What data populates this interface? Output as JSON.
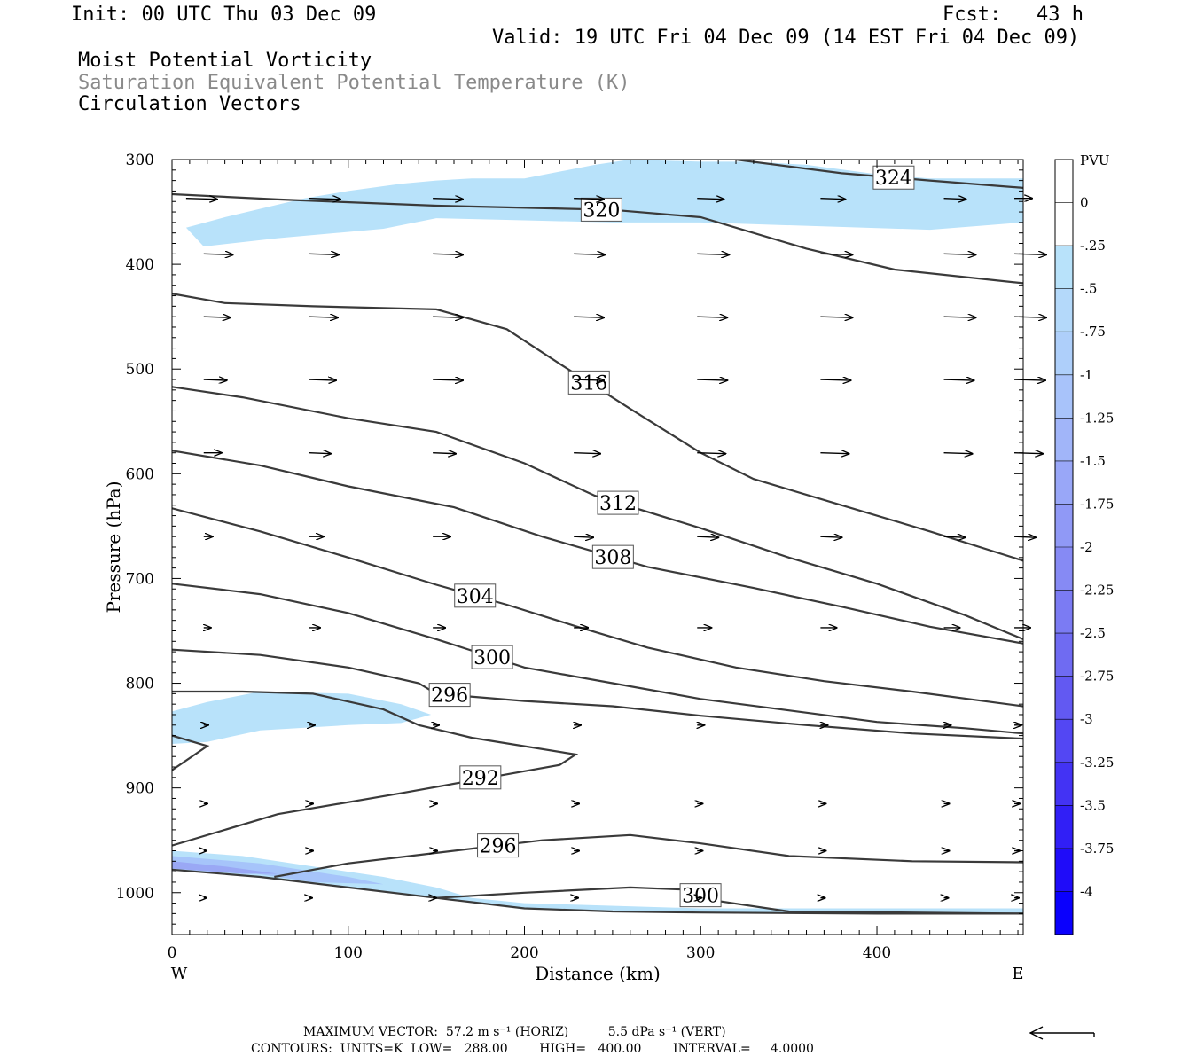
{
  "header": {
    "init": "Init: 00 UTC Thu 03 Dec 09",
    "fcst": "Fcst:   43 h",
    "valid": "Valid: 19 UTC Fri 04 Dec 09 (14 EST Fri 04 Dec 09)",
    "field1": "Moist Potential Vorticity",
    "field2": "Saturation Equivalent Potential Temperature (K)",
    "field3": "Circulation Vectors"
  },
  "footer": {
    "line1": "MAXIMUM VECTOR:  57.2 m s⁻¹ (HORIZ)          5.5 dPa s⁻¹ (VERT)",
    "line2": "CONTOURS:  UNITS=K  LOW=   288.00        HIGH=   400.00        INTERVAL=     4.0000"
  },
  "colors": {
    "pv_shade_light": "#b8e2fa",
    "pv_shade_mid": "#a6c4fa",
    "pv_shade_dark": "#9aa8f5",
    "contour": "#3a3a3a"
  },
  "chart_data": {
    "type": "cross-section",
    "xlabel": "Distance (km)",
    "ylabel": "Pressure (hPa)",
    "xlim": [
      0,
      483
    ],
    "ylim": [
      1040,
      300
    ],
    "x_ticks": [
      "0",
      "100",
      "200",
      "300",
      "400"
    ],
    "y_ticks": [
      "300",
      "400",
      "500",
      "600",
      "700",
      "800",
      "900",
      "1000"
    ],
    "left_end": "W",
    "right_end": "E",
    "colorbar": {
      "title": "PVU",
      "labels": [
        "0",
        "-.25",
        "-.5",
        "-.75",
        "-1",
        "-1.25",
        "-1.5",
        "-1.75",
        "-2",
        "-2.25",
        "-2.5",
        "-2.75",
        "-3",
        "-3.25",
        "-3.5",
        "-3.75",
        "-4"
      ],
      "bin_colors": [
        "#ffffff",
        "#ffffff",
        "#b8e2fa",
        "#b4d9fa",
        "#aecffa",
        "#a8c3fa",
        "#a1b5f9",
        "#99a7f8",
        "#9099f6",
        "#868af4",
        "#7b7bf3",
        "#6f6bf2",
        "#6259f2",
        "#5347f3",
        "#4333f4",
        "#311ff6",
        "#1f0cf9",
        "#0a00fd"
      ]
    },
    "contours": [
      {
        "label": "320",
        "points": [
          [
            0,
            333
          ],
          [
            60,
            338
          ],
          [
            150,
            344
          ],
          [
            250,
            348
          ],
          [
            300,
            355
          ],
          [
            360,
            385
          ],
          [
            410,
            405
          ],
          [
            483,
            418
          ]
        ]
      },
      {
        "label": "324",
        "points": [
          [
            320,
            300
          ],
          [
            380,
            313
          ],
          [
            430,
            320
          ],
          [
            483,
            327
          ]
        ]
      },
      {
        "label": "316",
        "points": [
          [
            0,
            428
          ],
          [
            30,
            437
          ],
          [
            80,
            440
          ],
          [
            150,
            443
          ],
          [
            190,
            462
          ],
          [
            220,
            495
          ],
          [
            260,
            538
          ],
          [
            300,
            580
          ],
          [
            330,
            605
          ],
          [
            380,
            630
          ],
          [
            430,
            655
          ],
          [
            483,
            683
          ]
        ]
      },
      {
        "label": "312",
        "points": [
          [
            0,
            517
          ],
          [
            40,
            527
          ],
          [
            100,
            547
          ],
          [
            150,
            560
          ],
          [
            200,
            590
          ],
          [
            240,
            621
          ],
          [
            300,
            652
          ],
          [
            350,
            680
          ],
          [
            400,
            705
          ],
          [
            450,
            735
          ],
          [
            483,
            758
          ]
        ]
      },
      {
        "label": "308",
        "points": [
          [
            0,
            578
          ],
          [
            50,
            592
          ],
          [
            100,
            612
          ],
          [
            160,
            632
          ],
          [
            210,
            660
          ],
          [
            270,
            689
          ],
          [
            330,
            709
          ],
          [
            380,
            727
          ],
          [
            430,
            746
          ],
          [
            483,
            762
          ]
        ]
      },
      {
        "label": "304",
        "points": [
          [
            0,
            633
          ],
          [
            50,
            655
          ],
          [
            100,
            680
          ],
          [
            150,
            706
          ],
          [
            190,
            725
          ],
          [
            230,
            746
          ],
          [
            270,
            766
          ],
          [
            320,
            785
          ],
          [
            370,
            798
          ],
          [
            420,
            808
          ],
          [
            483,
            822
          ]
        ]
      },
      {
        "label": "300",
        "points": [
          [
            0,
            705
          ],
          [
            50,
            715
          ],
          [
            100,
            733
          ],
          [
            150,
            758
          ],
          [
            200,
            785
          ],
          [
            250,
            800
          ],
          [
            300,
            815
          ],
          [
            350,
            826
          ],
          [
            400,
            837
          ],
          [
            450,
            843
          ],
          [
            483,
            848
          ]
        ]
      },
      {
        "label": "296",
        "points": [
          [
            0,
            768
          ],
          [
            50,
            773
          ],
          [
            100,
            785
          ],
          [
            140,
            800
          ],
          [
            150,
            810
          ],
          [
            200,
            817
          ],
          [
            250,
            822
          ],
          [
            300,
            831
          ],
          [
            360,
            840
          ],
          [
            420,
            848
          ],
          [
            483,
            853
          ]
        ]
      },
      {
        "label": "292",
        "points": [
          [
            0,
            883
          ],
          [
            20,
            860
          ],
          [
            0,
            850
          ]
        ]
      },
      {
        "label": "",
        "points": [
          [
            0,
            955
          ],
          [
            60,
            925
          ],
          [
            130,
            905
          ],
          [
            180,
            890
          ],
          [
            220,
            878
          ],
          [
            229,
            868
          ],
          [
            170,
            852
          ],
          [
            140,
            840
          ],
          [
            120,
            825
          ],
          [
            80,
            810
          ],
          [
            40,
            808
          ],
          [
            0,
            808
          ]
        ]
      },
      {
        "label": "296",
        "points": [
          [
            58,
            985
          ],
          [
            100,
            972
          ],
          [
            150,
            962
          ],
          [
            210,
            950
          ],
          [
            260,
            945
          ],
          [
            300,
            953
          ],
          [
            350,
            965
          ],
          [
            420,
            970
          ],
          [
            483,
            971
          ]
        ]
      },
      {
        "label": "300",
        "points": [
          [
            150,
            1005
          ],
          [
            200,
            1000
          ],
          [
            260,
            995
          ],
          [
            290,
            997
          ],
          [
            310,
            1008
          ],
          [
            350,
            1018
          ],
          [
            483,
            1020
          ]
        ]
      },
      {
        "label": "",
        "points": [
          [
            0,
            978
          ],
          [
            50,
            985
          ],
          [
            100,
            995
          ],
          [
            150,
            1005
          ],
          [
            200,
            1015
          ],
          [
            250,
            1018
          ],
          [
            300,
            1019
          ],
          [
            400,
            1020
          ],
          [
            483,
            1020
          ]
        ]
      }
    ],
    "pv_regions": [
      {
        "level": "-.25",
        "points": [
          [
            8,
            365
          ],
          [
            30,
            355
          ],
          [
            75,
            337
          ],
          [
            100,
            330
          ],
          [
            130,
            323
          ],
          [
            150,
            320
          ],
          [
            170,
            318
          ],
          [
            200,
            318
          ],
          [
            240,
            305
          ],
          [
            260,
            300
          ],
          [
            300,
            302
          ],
          [
            330,
            302
          ],
          [
            360,
            305
          ],
          [
            400,
            314
          ],
          [
            430,
            318
          ],
          [
            483,
            318
          ],
          [
            483,
            360
          ],
          [
            430,
            367
          ],
          [
            300,
            360
          ],
          [
            250,
            360
          ],
          [
            200,
            358
          ],
          [
            150,
            356
          ],
          [
            120,
            366
          ],
          [
            60,
            375
          ],
          [
            18,
            383
          ]
        ]
      },
      {
        "level": "-.25",
        "points": [
          [
            0,
            827
          ],
          [
            20,
            818
          ],
          [
            50,
            808
          ],
          [
            100,
            810
          ],
          [
            130,
            820
          ],
          [
            147,
            830
          ],
          [
            130,
            838
          ],
          [
            100,
            840
          ],
          [
            50,
            845
          ],
          [
            20,
            856
          ],
          [
            0,
            858
          ]
        ]
      },
      {
        "level": "-.25",
        "points": [
          [
            0,
            960
          ],
          [
            40,
            965
          ],
          [
            80,
            975
          ],
          [
            120,
            985
          ],
          [
            150,
            995
          ],
          [
            170,
            1005
          ],
          [
            200,
            1010
          ],
          [
            300,
            1015
          ],
          [
            483,
            1015
          ],
          [
            483,
            1020
          ],
          [
            300,
            1019
          ],
          [
            200,
            1015
          ],
          [
            150,
            1005
          ],
          [
            100,
            995
          ],
          [
            50,
            985
          ],
          [
            0,
            978
          ]
        ]
      },
      {
        "level": "-.5",
        "points": [
          [
            0,
            965
          ],
          [
            50,
            972
          ],
          [
            100,
            985
          ],
          [
            120,
            992
          ],
          [
            80,
            990
          ],
          [
            40,
            980
          ],
          [
            0,
            975
          ]
        ]
      },
      {
        "level": "-.75",
        "points": [
          [
            0,
            970
          ],
          [
            30,
            975
          ],
          [
            60,
            982
          ],
          [
            40,
            982
          ],
          [
            0,
            977
          ]
        ]
      }
    ],
    "vectors": {
      "rows": [
        {
          "p": 337,
          "x": [
            10,
            80,
            150,
            230,
            300,
            370,
            440,
            480
          ],
          "dx": [
            35,
            35,
            34,
            34,
            30,
            28,
            25,
            20
          ]
        },
        {
          "p": 390,
          "x": [
            20,
            80,
            150,
            230,
            300,
            370,
            440,
            480
          ],
          "dx": [
            33,
            33,
            34,
            35,
            36,
            36,
            36,
            36
          ]
        },
        {
          "p": 450,
          "x": [
            20,
            80,
            150,
            230,
            300,
            370,
            440,
            480
          ],
          "dx": [
            30,
            32,
            34,
            34,
            34,
            36,
            36,
            36
          ]
        },
        {
          "p": 510,
          "x": [
            20,
            80,
            150,
            230,
            300,
            370,
            440,
            480
          ],
          "dx": [
            26,
            30,
            34,
            34,
            34,
            34,
            34,
            35
          ]
        },
        {
          "p": 580,
          "x": [
            20,
            80,
            150,
            230,
            300,
            370,
            440,
            480
          ],
          "dx": [
            20,
            24,
            26,
            30,
            32,
            32,
            32,
            32
          ]
        },
        {
          "p": 660,
          "x": [
            20,
            80,
            150,
            230,
            300,
            370,
            440,
            480
          ],
          "dx": [
            10,
            16,
            20,
            22,
            24,
            24,
            24,
            24
          ]
        },
        {
          "p": 747,
          "x": [
            20,
            80,
            150,
            230,
            300,
            370,
            440,
            480
          ],
          "dx": [
            8,
            12,
            14,
            16,
            16,
            18,
            18,
            18
          ]
        },
        {
          "p": 840,
          "x": [
            20,
            80,
            150,
            230,
            300,
            370,
            440,
            480
          ],
          "dx": [
            5,
            6,
            7,
            8,
            8,
            8,
            8,
            8
          ]
        },
        {
          "p": 915,
          "x": [
            20,
            80,
            150,
            230,
            300,
            370,
            440,
            480
          ],
          "dx": [
            4,
            4,
            5,
            6,
            6,
            6,
            6,
            6
          ]
        },
        {
          "p": 960,
          "x": [
            20,
            80,
            150,
            230,
            300,
            370,
            440,
            480
          ],
          "dx": [
            3,
            4,
            5,
            6,
            6,
            6,
            6,
            6
          ]
        },
        {
          "p": 1005,
          "x": [
            20,
            80,
            150,
            230,
            300,
            370,
            440,
            480
          ],
          "dx": [
            3,
            3,
            4,
            5,
            5,
            5,
            5,
            5
          ]
        }
      ]
    }
  }
}
